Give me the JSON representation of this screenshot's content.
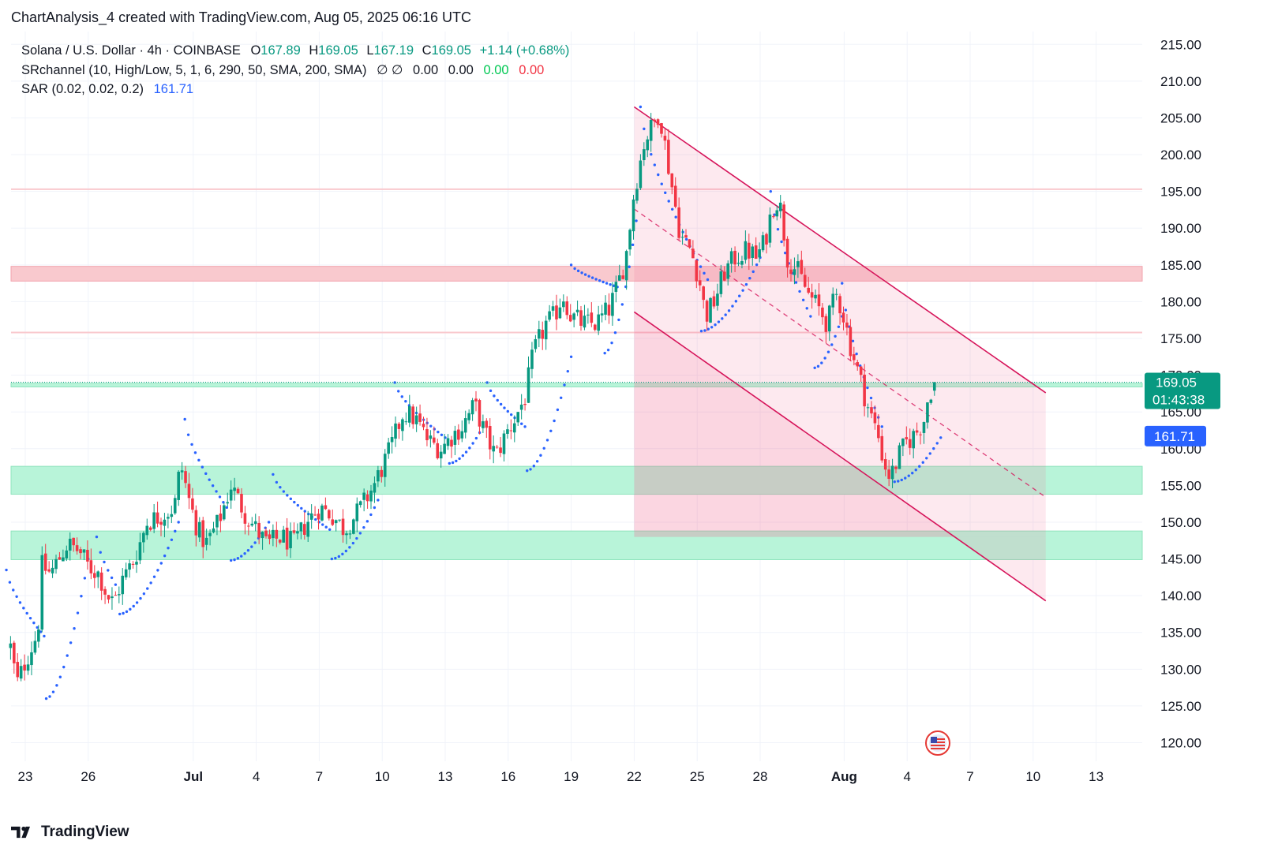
{
  "header": {
    "title": "ChartAnalysis_4 created with TradingView.com, Aug 05, 2025 06:16 UTC"
  },
  "legend": {
    "symbol": "Solana / U.S. Dollar · 4h · COINBASE",
    "o_label": "O",
    "o": "167.89",
    "h_label": "H",
    "h": "169.05",
    "l_label": "L",
    "l": "167.19",
    "c_label": "C",
    "c": "169.05",
    "change": "+1.14 (+0.68%)",
    "sr_name": "SRchannel (10, High/Low, 5, 1, 6, 290, 50, SMA, 200, SMA)",
    "sr_icons": "∅ ∅",
    "sr_v1": "0.00",
    "sr_v2": "0.00",
    "sr_v3": "0.00",
    "sr_v4": "0.00",
    "sar_name": "SAR (0.02, 0.02, 0.2)",
    "sar_value": "161.71"
  },
  "footer": {
    "brand": "TradingView"
  },
  "colors": {
    "up": "#089981",
    "down": "#f23645",
    "sar": "#2962ff",
    "channel": "#d6145a",
    "support": "#b8f4d9",
    "resistance": "#f9c9ce"
  },
  "chart_data": {
    "type": "candlestick",
    "ylim": [
      117,
      217
    ],
    "y_ticks": [
      "215.00",
      "210.00",
      "205.00",
      "200.00",
      "195.00",
      "190.00",
      "185.00",
      "180.00",
      "175.00",
      "170.00",
      "165.00",
      "160.00",
      "155.00",
      "150.00",
      "145.00",
      "140.00",
      "135.00",
      "130.00",
      "125.00",
      "120.00"
    ],
    "x_ticks": [
      {
        "label": "23",
        "day": 0
      },
      {
        "label": "26",
        "day": 3
      },
      {
        "label": "Jul",
        "day": 8
      },
      {
        "label": "4",
        "day": 11
      },
      {
        "label": "7",
        "day": 14
      },
      {
        "label": "10",
        "day": 17
      },
      {
        "label": "13",
        "day": 20
      },
      {
        "label": "16",
        "day": 23
      },
      {
        "label": "19",
        "day": 26
      },
      {
        "label": "22",
        "day": 29
      },
      {
        "label": "25",
        "day": 32
      },
      {
        "label": "28",
        "day": 35
      },
      {
        "label": "Aug",
        "day": 39
      },
      {
        "label": "4",
        "day": 42
      },
      {
        "label": "7",
        "day": 45
      },
      {
        "label": "10",
        "day": 48
      },
      {
        "label": "13",
        "day": 51
      }
    ],
    "bold_ticks": [
      "Jul",
      "Aug"
    ],
    "last_price": "169.05",
    "countdown": "01:43:38",
    "sar_last": "161.71",
    "resistance_lines": [
      195.3,
      175.8
    ],
    "resistance_zone": [
      182.8,
      184.8
    ],
    "support_zones": [
      [
        153.8,
        157.6
      ],
      [
        144.9,
        148.8
      ],
      [
        168.4,
        168.9
      ]
    ],
    "channel": {
      "upper": [
        [
          29.0,
          206.5
        ],
        [
          48.6,
          167.6
        ]
      ],
      "lower": [
        [
          29.0,
          178.6
        ],
        [
          48.6,
          139.3
        ]
      ],
      "mid": [
        [
          29.0,
          192.6
        ],
        [
          48.6,
          153.4
        ]
      ],
      "fill_until_day": 48.6
    },
    "anchors": [
      [
        -0.7,
        133
      ],
      [
        -0.4,
        128
      ],
      [
        0.0,
        131
      ],
      [
        0.3,
        133
      ],
      [
        0.6,
        135
      ],
      [
        0.8,
        144
      ],
      [
        1.2,
        143
      ],
      [
        1.6,
        145
      ],
      [
        2.0,
        147
      ],
      [
        2.6,
        146
      ],
      [
        3.0,
        144
      ],
      [
        3.5,
        143
      ],
      [
        3.9,
        140
      ],
      [
        4.2,
        139
      ],
      [
        4.6,
        142
      ],
      [
        5.2,
        145
      ],
      [
        5.8,
        150
      ],
      [
        6.5,
        151
      ],
      [
        7.1,
        152
      ],
      [
        7.4,
        158
      ],
      [
        7.8,
        153
      ],
      [
        8.2,
        149
      ],
      [
        8.6,
        147
      ],
      [
        9.2,
        150
      ],
      [
        9.8,
        155
      ],
      [
        10.5,
        151
      ],
      [
        11.0,
        149
      ],
      [
        11.5,
        147
      ],
      [
        12.2,
        148
      ],
      [
        12.8,
        147
      ],
      [
        13.4,
        150
      ],
      [
        14.0,
        152
      ],
      [
        14.6,
        151
      ],
      [
        15.2,
        149
      ],
      [
        16.0,
        152
      ],
      [
        16.6,
        155
      ],
      [
        17.4,
        160
      ],
      [
        18.0,
        165
      ],
      [
        18.6,
        164
      ],
      [
        19.2,
        161
      ],
      [
        19.8,
        160
      ],
      [
        20.4,
        162
      ],
      [
        20.8,
        163
      ],
      [
        21.4,
        166
      ],
      [
        21.9,
        162
      ],
      [
        22.4,
        159
      ],
      [
        22.9,
        162
      ],
      [
        23.3,
        164
      ],
      [
        23.8,
        167
      ],
      [
        24.2,
        173
      ],
      [
        24.8,
        177
      ],
      [
        25.2,
        178
      ],
      [
        25.6,
        181
      ],
      [
        26.0,
        178
      ],
      [
        26.6,
        177
      ],
      [
        27.2,
        177
      ],
      [
        27.8,
        179
      ],
      [
        28.2,
        182
      ],
      [
        28.6,
        186
      ],
      [
        29.0,
        195
      ],
      [
        29.5,
        202
      ],
      [
        29.9,
        204
      ],
      [
        30.2,
        206
      ],
      [
        30.6,
        199
      ],
      [
        30.9,
        194
      ],
      [
        31.2,
        189
      ],
      [
        31.7,
        187
      ],
      [
        32.1,
        183
      ],
      [
        32.4,
        178
      ],
      [
        32.8,
        180
      ],
      [
        33.3,
        184
      ],
      [
        33.8,
        186
      ],
      [
        34.4,
        187
      ],
      [
        34.8,
        186
      ],
      [
        35.2,
        188
      ],
      [
        35.6,
        193
      ],
      [
        35.9,
        194
      ],
      [
        36.3,
        186
      ],
      [
        36.8,
        184
      ],
      [
        37.3,
        181
      ],
      [
        37.8,
        179
      ],
      [
        38.2,
        177
      ],
      [
        38.6,
        181
      ],
      [
        38.9,
        179
      ],
      [
        39.3,
        174
      ],
      [
        39.8,
        169
      ],
      [
        40.2,
        165
      ],
      [
        40.6,
        162
      ],
      [
        40.9,
        158
      ],
      [
        41.2,
        156
      ],
      [
        41.6,
        159
      ],
      [
        42.0,
        161
      ],
      [
        42.4,
        162
      ],
      [
        42.8,
        164
      ],
      [
        43.0,
        167
      ],
      [
        43.2,
        168.5
      ],
      [
        43.4,
        169.05
      ]
    ],
    "sar_segments": [
      {
        "dir": "down",
        "x": [
          -0.9,
          0.9
        ],
        "y": [
          143.5,
          134.5
        ]
      },
      {
        "dir": "up",
        "x": [
          1.0,
          3.0
        ],
        "y": [
          126.0,
          145.0
        ]
      },
      {
        "dir": "down",
        "x": [
          3.4,
          4.3
        ],
        "y": [
          148.0,
          141.5
        ]
      },
      {
        "dir": "up",
        "x": [
          4.5,
          7.3
        ],
        "y": [
          137.5,
          150.0
        ]
      },
      {
        "dir": "down",
        "x": [
          7.6,
          9.6
        ],
        "y": [
          164.0,
          152.0
        ]
      },
      {
        "dir": "up",
        "x": [
          9.8,
          11.6
        ],
        "y": [
          144.8,
          150.0
        ]
      },
      {
        "dir": "down",
        "x": [
          11.8,
          14.5
        ],
        "y": [
          156.5,
          149.0
        ]
      },
      {
        "dir": "up",
        "x": [
          14.6,
          16.8
        ],
        "y": [
          145.0,
          153.0
        ]
      },
      {
        "dir": "down",
        "x": [
          17.6,
          20.0
        ],
        "y": [
          169.0,
          161.5
        ]
      },
      {
        "dir": "up",
        "x": [
          20.2,
          21.8
        ],
        "y": [
          158.0,
          163.0
        ]
      },
      {
        "dir": "down",
        "x": [
          22.0,
          23.8
        ],
        "y": [
          169.0,
          163.0
        ]
      },
      {
        "dir": "up",
        "x": [
          23.9,
          26.0
        ],
        "y": [
          157.0,
          172.5
        ]
      },
      {
        "dir": "down",
        "x": [
          26.0,
          28.2
        ],
        "y": [
          185.0,
          182.0
        ]
      },
      {
        "dir": "up",
        "x": [
          27.6,
          29.1
        ],
        "y": [
          173.0,
          191.0
        ]
      },
      {
        "dir": "down",
        "x": [
          29.3,
          32.5
        ],
        "y": [
          206.5,
          183.0
        ]
      },
      {
        "dir": "up",
        "x": [
          32.2,
          35.0
        ],
        "y": [
          176.0,
          186.0
        ]
      },
      {
        "dir": "down",
        "x": [
          35.5,
          37.4
        ],
        "y": [
          195.0,
          178.0
        ]
      },
      {
        "dir": "up",
        "x": [
          37.6,
          38.9
        ],
        "y": [
          171.0,
          178.0
        ]
      },
      {
        "dir": "down",
        "x": [
          38.9,
          40.8
        ],
        "y": [
          182.5,
          163.0
        ]
      },
      {
        "dir": "up",
        "x": [
          41.4,
          43.6
        ],
        "y": [
          155.5,
          161.5
        ]
      }
    ]
  }
}
